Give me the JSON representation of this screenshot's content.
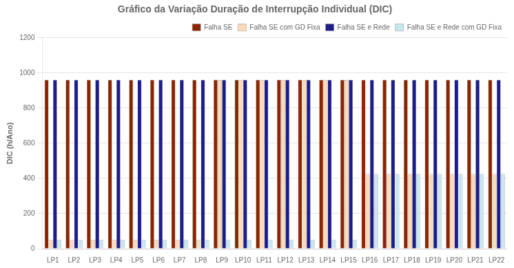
{
  "chart_data": {
    "type": "bar",
    "title": "Gráfico da Variação Duração de Interrupção Individual (DIC)",
    "ylabel": "DIC (h/Ano)",
    "categories": [
      "LP1",
      "LP2",
      "LP3",
      "LP4",
      "LP5",
      "LP6",
      "LP7",
      "LP8",
      "LP9",
      "LP10",
      "LP11",
      "LP12",
      "LP13",
      "LP14",
      "LP15",
      "LP16",
      "LP17",
      "LP18",
      "LP19",
      "LP20",
      "LP21",
      "LP22"
    ],
    "series": [
      {
        "name": "Falha SE",
        "color": "#8B2500",
        "values": [
          960,
          960,
          960,
          960,
          960,
          960,
          960,
          960,
          960,
          960,
          960,
          960,
          960,
          960,
          960,
          960,
          960,
          960,
          960,
          960,
          960,
          960
        ]
      },
      {
        "name": "Falha SE com GD Fixa",
        "color": "#FFDAB9",
        "values": [
          50,
          50,
          50,
          50,
          50,
          50,
          50,
          50,
          960,
          960,
          960,
          960,
          960,
          960,
          960,
          425,
          425,
          425,
          425,
          425,
          425,
          425
        ]
      },
      {
        "name": "Falha SE e Rede",
        "color": "#1C1C8C",
        "values": [
          960,
          960,
          960,
          960,
          960,
          960,
          960,
          960,
          960,
          960,
          960,
          960,
          960,
          960,
          960,
          960,
          960,
          960,
          960,
          960,
          960,
          960
        ]
      },
      {
        "name": "Falha SE e Rede com GD Fixa",
        "color": "#C8E8F0",
        "values": [
          50,
          50,
          50,
          50,
          50,
          50,
          50,
          50,
          50,
          50,
          50,
          50,
          50,
          50,
          50,
          425,
          425,
          425,
          425,
          425,
          425,
          425
        ]
      }
    ],
    "ylim": [
      0,
      1200
    ],
    "yticks": [
      0,
      200,
      400,
      600,
      800,
      1000,
      1200
    ],
    "grid": true,
    "legend": "upper right"
  }
}
